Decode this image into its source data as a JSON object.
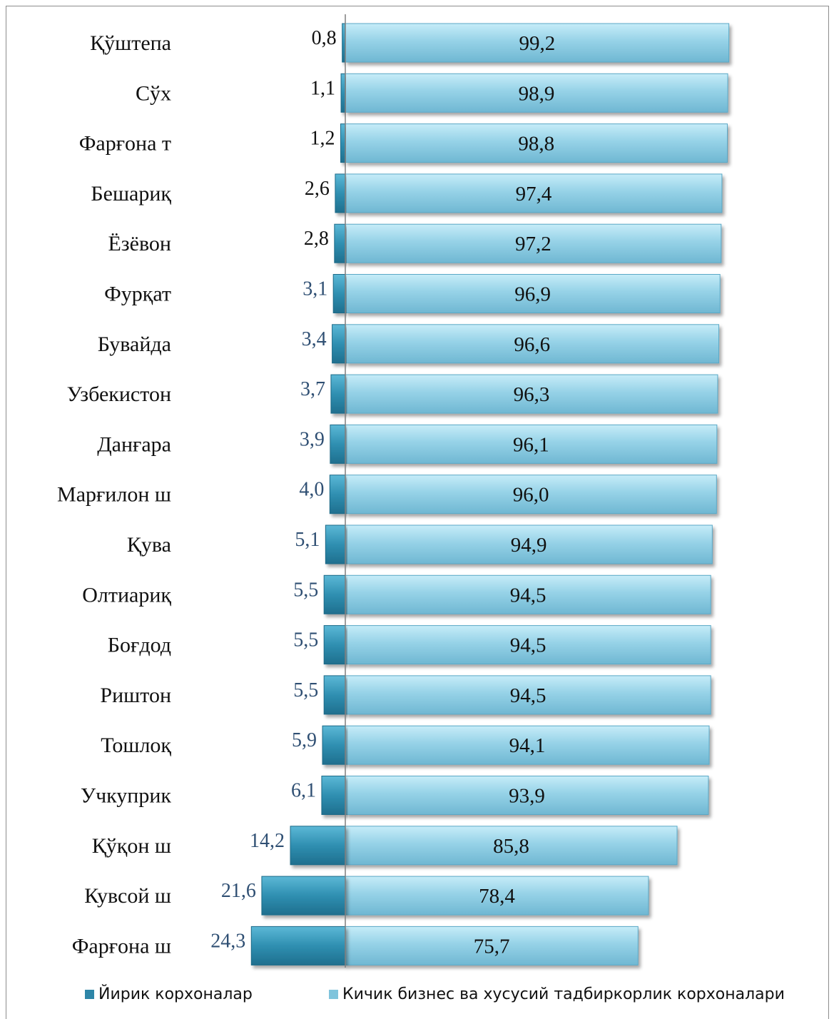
{
  "chart_data": {
    "type": "bar",
    "orientation": "horizontal-diverging",
    "categories": [
      "Қўштепа",
      "Сўх",
      "Фарғона т",
      "Бешариқ",
      "Ёзёвон",
      "Фурқат",
      "Бувайда",
      "Узбекистон",
      "Данғара",
      "Марғилон ш",
      "Қува",
      "Олтиариқ",
      "Боғдод",
      "Риштон",
      "Тошлоқ",
      "Учкуприк",
      "Қўқон ш",
      "Кувсой ш",
      "Фарғона ш"
    ],
    "series": [
      {
        "name": "Йирик корхоналар",
        "color": "#3a97b8",
        "values": [
          0.8,
          1.1,
          1.2,
          2.6,
          2.8,
          3.1,
          3.4,
          3.7,
          3.9,
          4.0,
          5.1,
          5.5,
          5.5,
          5.5,
          5.9,
          6.1,
          14.2,
          21.6,
          24.3
        ],
        "labels": [
          "0,8",
          "1,1",
          "1,2",
          "2,6",
          "2,8",
          "3,1",
          "3,4",
          "3,7",
          "3,9",
          "4,0",
          "5,1",
          "5,5",
          "5,5",
          "5,5",
          "5,9",
          "6,1",
          "14,2",
          "21,6",
          "24,3"
        ]
      },
      {
        "name": "Кичик бизнес ва хусусий тадбиркорлик корхоналари",
        "color": "#8fd0e8",
        "values": [
          99.2,
          98.9,
          98.8,
          97.4,
          97.2,
          96.9,
          96.6,
          96.3,
          96.1,
          96.0,
          94.9,
          94.5,
          94.5,
          94.5,
          94.1,
          93.9,
          85.8,
          78.4,
          75.7
        ],
        "labels": [
          "99,2",
          "98,9",
          "98,8",
          "97,4",
          "97,2",
          "96,9",
          "96,6",
          "96,3",
          "96,1",
          "96,0",
          "94,9",
          "94,5",
          "94,5",
          "94,5",
          "94,1",
          "93,9",
          "85,8",
          "78,4",
          "75,7"
        ]
      }
    ],
    "grid": false,
    "legend": "bottom"
  }
}
